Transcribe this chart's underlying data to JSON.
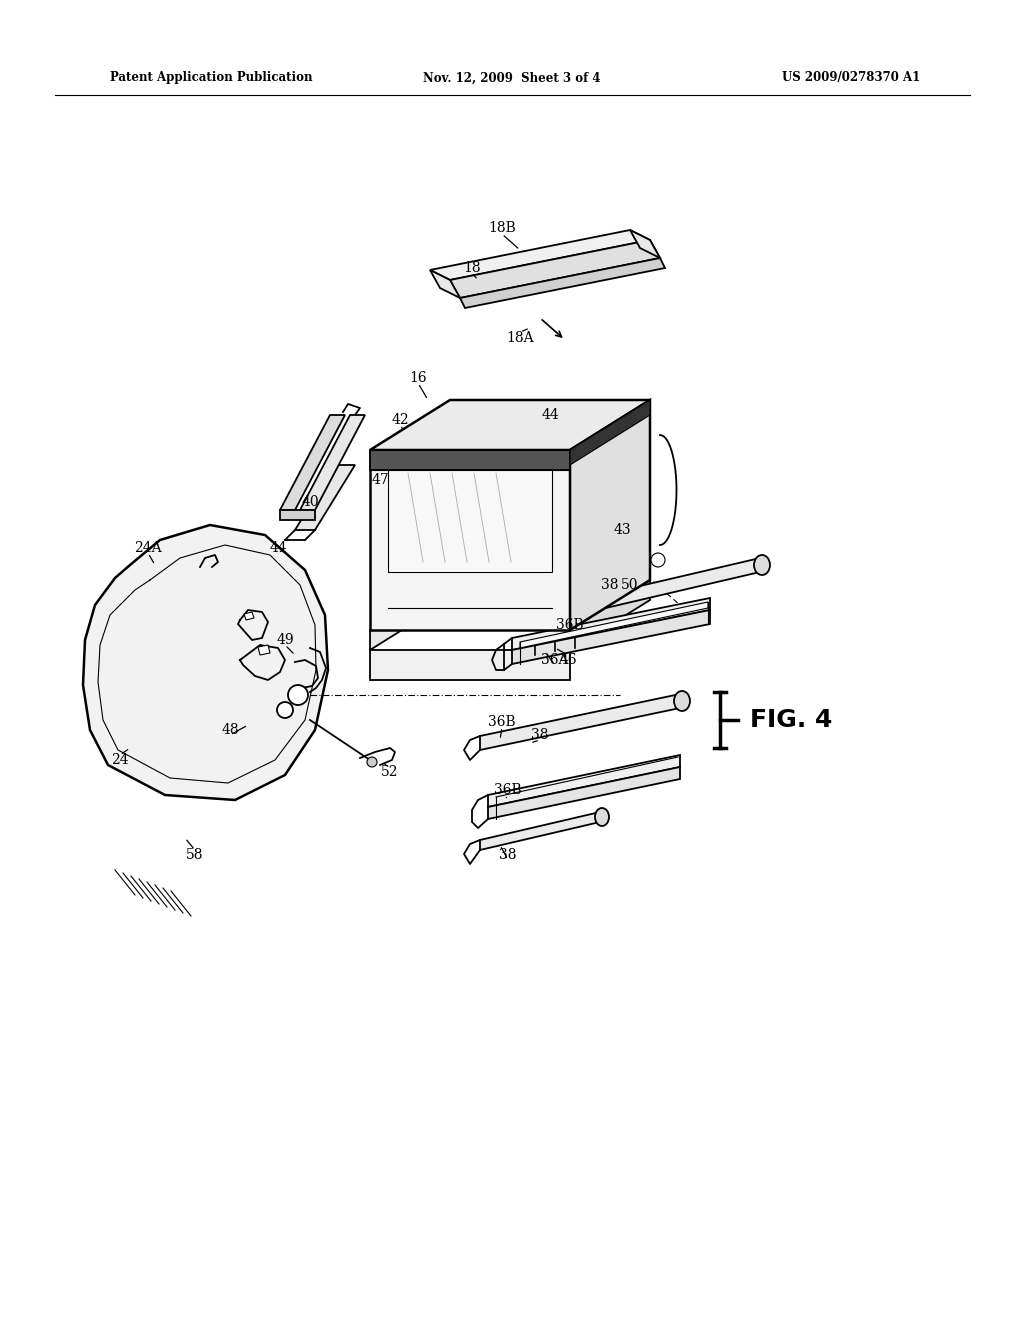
{
  "background_color": "#ffffff",
  "page_width": 10.24,
  "page_height": 13.2,
  "header_left": "Patent Application Publication",
  "header_center": "Nov. 12, 2009  Sheet 3 of 4",
  "header_right": "US 2009/0278370 A1",
  "fig_label": "FIG.4"
}
